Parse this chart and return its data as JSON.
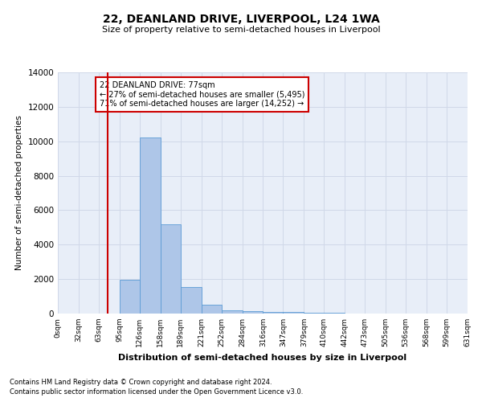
{
  "title": "22, DEANLAND DRIVE, LIVERPOOL, L24 1WA",
  "subtitle": "Size of property relative to semi-detached houses in Liverpool",
  "xlabel": "Distribution of semi-detached houses by size in Liverpool",
  "ylabel": "Number of semi-detached properties",
  "footnote1": "Contains HM Land Registry data © Crown copyright and database right 2024.",
  "footnote2": "Contains public sector information licensed under the Open Government Licence v3.0.",
  "annotation_title": "22 DEANLAND DRIVE: 77sqm",
  "annotation_line1": "← 27% of semi-detached houses are smaller (5,495)",
  "annotation_line2": "71% of semi-detached houses are larger (14,252) →",
  "property_size": 77,
  "bin_edges": [
    0,
    32,
    63,
    95,
    126,
    158,
    189,
    221,
    252,
    284,
    316,
    347,
    379,
    410,
    442,
    473,
    505,
    536,
    568,
    599,
    631
  ],
  "bin_labels": [
    "0sqm",
    "32sqm",
    "63sqm",
    "95sqm",
    "126sqm",
    "158sqm",
    "189sqm",
    "221sqm",
    "252sqm",
    "284sqm",
    "316sqm",
    "347sqm",
    "379sqm",
    "410sqm",
    "442sqm",
    "473sqm",
    "505sqm",
    "536sqm",
    "568sqm",
    "599sqm",
    "631sqm"
  ],
  "bar_heights": [
    0,
    0,
    0,
    1950,
    10200,
    5200,
    1550,
    500,
    200,
    150,
    100,
    80,
    50,
    30,
    20,
    10,
    5,
    5,
    2,
    2
  ],
  "bar_color": "#aec6e8",
  "bar_edge_color": "#5b9bd5",
  "vline_color": "#cc0000",
  "grid_color": "#d0d8e8",
  "background_color": "#e8eef8",
  "annotation_box_edge_color": "#cc0000",
  "ylim": [
    0,
    14000
  ],
  "yticks": [
    0,
    2000,
    4000,
    6000,
    8000,
    10000,
    12000,
    14000
  ]
}
